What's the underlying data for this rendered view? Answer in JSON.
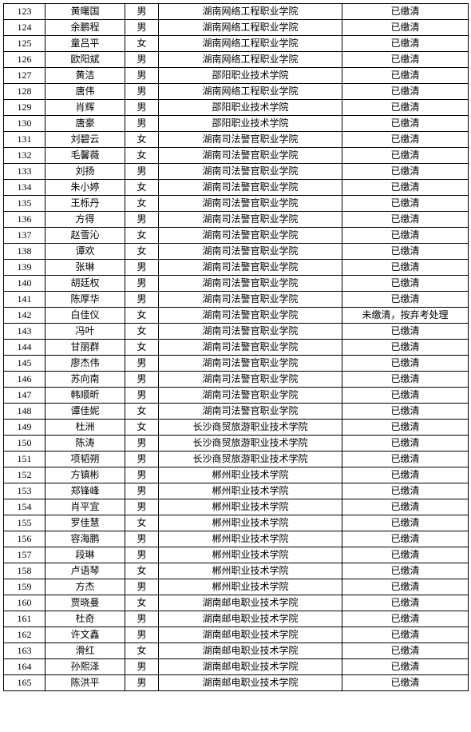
{
  "rows": [
    {
      "n": "123",
      "name": "黄曙国",
      "g": "男",
      "school": "湖南网络工程职业学院",
      "status": "已缴清"
    },
    {
      "n": "124",
      "name": "余鹏程",
      "g": "男",
      "school": "湖南网络工程职业学院",
      "status": "已缴清"
    },
    {
      "n": "125",
      "name": "童吕平",
      "g": "女",
      "school": "湖南网络工程职业学院",
      "status": "已缴清"
    },
    {
      "n": "126",
      "name": "欧阳斌",
      "g": "男",
      "school": "湖南网络工程职业学院",
      "status": "已缴清"
    },
    {
      "n": "127",
      "name": "黄洁",
      "g": "男",
      "school": "邵阳职业技术学院",
      "status": "已缴清"
    },
    {
      "n": "128",
      "name": "唐伟",
      "g": "男",
      "school": "湖南网络工程职业学院",
      "status": "已缴清"
    },
    {
      "n": "129",
      "name": "肖辉",
      "g": "男",
      "school": "邵阳职业技术学院",
      "status": "已缴清"
    },
    {
      "n": "130",
      "name": "唐豪",
      "g": "男",
      "school": "邵阳职业技术学院",
      "status": "已缴清"
    },
    {
      "n": "131",
      "name": "刘碧云",
      "g": "女",
      "school": "湖南司法警官职业学院",
      "status": "已缴清"
    },
    {
      "n": "132",
      "name": "毛馨薇",
      "g": "女",
      "school": "湖南司法警官职业学院",
      "status": "已缴清"
    },
    {
      "n": "133",
      "name": "刘扬",
      "g": "男",
      "school": "湖南司法警官职业学院",
      "status": "已缴清"
    },
    {
      "n": "134",
      "name": "朱小婷",
      "g": "女",
      "school": "湖南司法警官职业学院",
      "status": "已缴清"
    },
    {
      "n": "135",
      "name": "王栎丹",
      "g": "女",
      "school": "湖南司法警官职业学院",
      "status": "已缴清"
    },
    {
      "n": "136",
      "name": "方得",
      "g": "男",
      "school": "湖南司法警官职业学院",
      "status": "已缴清"
    },
    {
      "n": "137",
      "name": "赵雪沁",
      "g": "女",
      "school": "湖南司法警官职业学院",
      "status": "已缴清"
    },
    {
      "n": "138",
      "name": "谭欢",
      "g": "女",
      "school": "湖南司法警官职业学院",
      "status": "已缴清"
    },
    {
      "n": "139",
      "name": "张琳",
      "g": "男",
      "school": "湖南司法警官职业学院",
      "status": "已缴清"
    },
    {
      "n": "140",
      "name": "胡廷权",
      "g": "男",
      "school": "湖南司法警官职业学院",
      "status": "已缴清"
    },
    {
      "n": "141",
      "name": "陈厚华",
      "g": "男",
      "school": "湖南司法警官职业学院",
      "status": "已缴清"
    },
    {
      "n": "142",
      "name": "白佳仪",
      "g": "女",
      "school": "湖南司法警官职业学院",
      "status": "未缴清，按弃考处理"
    },
    {
      "n": "143",
      "name": "冯叶",
      "g": "女",
      "school": "湖南司法警官职业学院",
      "status": "已缴清"
    },
    {
      "n": "144",
      "name": "甘丽群",
      "g": "女",
      "school": "湖南司法警官职业学院",
      "status": "已缴清"
    },
    {
      "n": "145",
      "name": "廖杰伟",
      "g": "男",
      "school": "湖南司法警官职业学院",
      "status": "已缴清"
    },
    {
      "n": "146",
      "name": "苏向南",
      "g": "男",
      "school": "湖南司法警官职业学院",
      "status": "已缴清"
    },
    {
      "n": "147",
      "name": "韩顺昕",
      "g": "男",
      "school": "湖南司法警官职业学院",
      "status": "已缴清"
    },
    {
      "n": "148",
      "name": "谭佳妮",
      "g": "女",
      "school": "湖南司法警官职业学院",
      "status": "已缴清"
    },
    {
      "n": "149",
      "name": "杜洲",
      "g": "女",
      "school": "长沙商贸旅游职业技术学院",
      "status": "已缴清"
    },
    {
      "n": "150",
      "name": "陈涛",
      "g": "男",
      "school": "长沙商贸旅游职业技术学院",
      "status": "已缴清"
    },
    {
      "n": "151",
      "name": "项韬朔",
      "g": "男",
      "school": "长沙商贸旅游职业技术学院",
      "status": "已缴清"
    },
    {
      "n": "152",
      "name": "方镇彬",
      "g": "男",
      "school": "郴州职业技术学院",
      "status": "已缴清"
    },
    {
      "n": "153",
      "name": "郑锋峰",
      "g": "男",
      "school": "郴州职业技术学院",
      "status": "已缴清"
    },
    {
      "n": "154",
      "name": "肖平宜",
      "g": "男",
      "school": "郴州职业技术学院",
      "status": "已缴清"
    },
    {
      "n": "155",
      "name": "罗佳慧",
      "g": "女",
      "school": "郴州职业技术学院",
      "status": "已缴清"
    },
    {
      "n": "156",
      "name": "容海鹏",
      "g": "男",
      "school": "郴州职业技术学院",
      "status": "已缴清"
    },
    {
      "n": "157",
      "name": "段琳",
      "g": "男",
      "school": "郴州职业技术学院",
      "status": "已缴清"
    },
    {
      "n": "158",
      "name": "卢语琴",
      "g": "女",
      "school": "郴州职业技术学院",
      "status": "已缴清"
    },
    {
      "n": "159",
      "name": "方杰",
      "g": "男",
      "school": "郴州职业技术学院",
      "status": "已缴清"
    },
    {
      "n": "160",
      "name": "贾晓曼",
      "g": "女",
      "school": "湖南邮电职业技术学院",
      "status": "已缴清"
    },
    {
      "n": "161",
      "name": "杜奇",
      "g": "男",
      "school": "湖南邮电职业技术学院",
      "status": "已缴清"
    },
    {
      "n": "162",
      "name": "许文鑫",
      "g": "男",
      "school": "湖南邮电职业技术学院",
      "status": "已缴清"
    },
    {
      "n": "163",
      "name": "滑红",
      "g": "女",
      "school": "湖南邮电职业技术学院",
      "status": "已缴清"
    },
    {
      "n": "164",
      "name": "孙熙泽",
      "g": "男",
      "school": "湖南邮电职业技术学院",
      "status": "已缴清"
    },
    {
      "n": "165",
      "name": "陈洪平",
      "g": "男",
      "school": "湖南邮电职业技术学院",
      "status": "已缴清"
    }
  ]
}
